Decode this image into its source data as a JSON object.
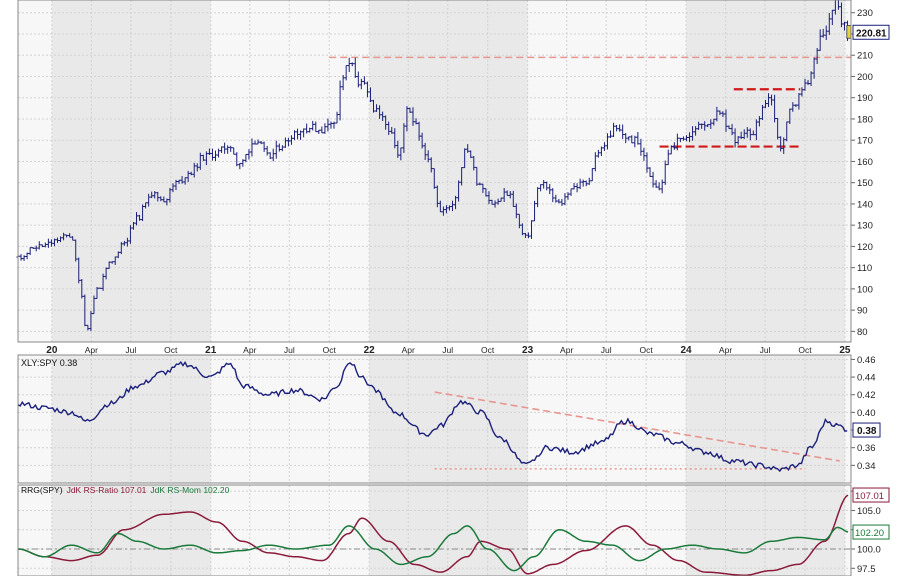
{
  "chart_data": [
    {
      "type": "ohlc",
      "panel": "price",
      "title": "",
      "series": [
        {
          "name": "",
          "color": "#1a1f7a"
        }
      ],
      "last_value_label": "220.81",
      "ylim": [
        75,
        236
      ],
      "y_ticks": [
        80,
        90,
        100,
        110,
        120,
        130,
        140,
        150,
        160,
        170,
        180,
        190,
        200,
        210,
        220,
        230
      ],
      "x_tick_labels": [
        {
          "label": "20",
          "date": "2020-01-01"
        },
        {
          "label": "Apr",
          "date": "2020-04-01"
        },
        {
          "label": "Jul",
          "date": "2020-07-01"
        },
        {
          "label": "Oct",
          "date": "2020-10-01"
        },
        {
          "label": "21",
          "date": "2021-01-01"
        },
        {
          "label": "Apr",
          "date": "2021-04-01"
        },
        {
          "label": "Jul",
          "date": "2021-07-01"
        },
        {
          "label": "Oct",
          "date": "2021-10-01"
        },
        {
          "label": "22",
          "date": "2022-01-01"
        },
        {
          "label": "Apr",
          "date": "2022-04-01"
        },
        {
          "label": "Jul",
          "date": "2022-07-01"
        },
        {
          "label": "Oct",
          "date": "2022-10-01"
        },
        {
          "label": "23",
          "date": "2023-01-01"
        },
        {
          "label": "Apr",
          "date": "2023-04-01"
        },
        {
          "label": "Jul",
          "date": "2023-07-01"
        },
        {
          "label": "Oct",
          "date": "2023-10-01"
        },
        {
          "label": "24",
          "date": "2024-01-01"
        },
        {
          "label": "Apr",
          "date": "2024-04-01"
        },
        {
          "label": "Jul",
          "date": "2024-07-01"
        },
        {
          "label": "Oct",
          "date": "2024-10-01"
        },
        {
          "label": "25",
          "date": "2025-01-01"
        }
      ],
      "x_range": [
        "2019-10-15",
        "2025-01-15"
      ],
      "grid": true,
      "close_points": [
        [
          "2019-10-15",
          115
        ],
        [
          "2019-12-01",
          120
        ],
        [
          "2020-02-15",
          125
        ],
        [
          "2020-03-05",
          103
        ],
        [
          "2020-03-20",
          81
        ],
        [
          "2020-04-15",
          100
        ],
        [
          "2020-05-15",
          112
        ],
        [
          "2020-06-15",
          122
        ],
        [
          "2020-07-15",
          133
        ],
        [
          "2020-08-15",
          145
        ],
        [
          "2020-09-15",
          142
        ],
        [
          "2020-10-15",
          150
        ],
        [
          "2020-11-15",
          155
        ],
        [
          "2020-12-15",
          162
        ],
        [
          "2021-01-15",
          164
        ],
        [
          "2021-02-15",
          168
        ],
        [
          "2021-03-05",
          158
        ],
        [
          "2021-04-15",
          170
        ],
        [
          "2021-05-15",
          162
        ],
        [
          "2021-06-15",
          168
        ],
        [
          "2021-07-15",
          174
        ],
        [
          "2021-08-15",
          176
        ],
        [
          "2021-09-15",
          175
        ],
        [
          "2021-10-15",
          180
        ],
        [
          "2021-11-01",
          200
        ],
        [
          "2021-11-15",
          206
        ],
        [
          "2021-12-15",
          196
        ],
        [
          "2022-01-15",
          185
        ],
        [
          "2022-02-15",
          175
        ],
        [
          "2022-03-10",
          162
        ],
        [
          "2022-03-31",
          184
        ],
        [
          "2022-05-15",
          163
        ],
        [
          "2022-06-15",
          136
        ],
        [
          "2022-07-10",
          140
        ],
        [
          "2022-08-15",
          166
        ],
        [
          "2022-09-10",
          150
        ],
        [
          "2022-10-15",
          140
        ],
        [
          "2022-11-15",
          145
        ],
        [
          "2022-12-28",
          124
        ],
        [
          "2023-02-01",
          150
        ],
        [
          "2023-03-15",
          140
        ],
        [
          "2023-04-15",
          148
        ],
        [
          "2023-05-15",
          150
        ],
        [
          "2023-06-15",
          165
        ],
        [
          "2023-07-20",
          175
        ],
        [
          "2023-09-01",
          170
        ],
        [
          "2023-10-30",
          148
        ],
        [
          "2023-11-30",
          168
        ],
        [
          "2024-01-01",
          172
        ],
        [
          "2024-02-15",
          178
        ],
        [
          "2024-03-15",
          182
        ],
        [
          "2024-04-30",
          170
        ],
        [
          "2024-05-31",
          174
        ],
        [
          "2024-07-10",
          190
        ],
        [
          "2024-08-05",
          167
        ],
        [
          "2024-09-01",
          185
        ],
        [
          "2024-10-01",
          195
        ],
        [
          "2024-11-15",
          222
        ],
        [
          "2024-12-10",
          236
        ],
        [
          "2024-12-31",
          224
        ],
        [
          "2025-01-10",
          221
        ]
      ],
      "annotations": [
        {
          "type": "horizontal-line",
          "y": 209,
          "from": "2021-10-01",
          "to": "2025-01-15",
          "style": "dashed",
          "color": "#e8958f"
        },
        {
          "type": "horizontal-line",
          "y": 167,
          "from": "2023-11-01",
          "to": "2024-09-20",
          "style": "dashed",
          "color": "#d01818"
        },
        {
          "type": "horizontal-line",
          "y": 194,
          "from": "2024-04-20",
          "to": "2024-09-20",
          "style": "dashed",
          "color": "#d01818"
        }
      ]
    },
    {
      "type": "line",
      "panel": "relative-strength",
      "legend": "XLY:SPY 0.38",
      "last_value_label": "0.38",
      "series": [
        {
          "name": "XLY:SPY",
          "color": "#1a1f7a"
        }
      ],
      "ylim": [
        0.32,
        0.465
      ],
      "y_ticks": [
        0.34,
        0.36,
        0.38,
        0.4,
        0.42,
        0.44,
        0.46
      ],
      "y_tick_labels": [
        "0.34",
        "0.36",
        "0.38",
        "0.40",
        "0.42",
        "0.44",
        "0.46"
      ],
      "points": [
        [
          "2019-10-15",
          0.41
        ],
        [
          "2019-12-15",
          0.405
        ],
        [
          "2020-02-15",
          0.4
        ],
        [
          "2020-03-20",
          0.39
        ],
        [
          "2020-05-15",
          0.41
        ],
        [
          "2020-07-15",
          0.43
        ],
        [
          "2020-09-15",
          0.445
        ],
        [
          "2020-11-01",
          0.455
        ],
        [
          "2021-01-01",
          0.44
        ],
        [
          "2021-02-15",
          0.455
        ],
        [
          "2021-03-15",
          0.43
        ],
        [
          "2021-05-15",
          0.42
        ],
        [
          "2021-07-15",
          0.425
        ],
        [
          "2021-09-15",
          0.415
        ],
        [
          "2021-10-20",
          0.43
        ],
        [
          "2021-11-15",
          0.458
        ],
        [
          "2021-12-15",
          0.44
        ],
        [
          "2022-01-15",
          0.425
        ],
        [
          "2022-03-01",
          0.4
        ],
        [
          "2022-05-15",
          0.375
        ],
        [
          "2022-06-15",
          0.385
        ],
        [
          "2022-08-01",
          0.412
        ],
        [
          "2022-09-15",
          0.4
        ],
        [
          "2022-11-01",
          0.37
        ],
        [
          "2022-12-28",
          0.34
        ],
        [
          "2023-02-15",
          0.36
        ],
        [
          "2023-04-15",
          0.355
        ],
        [
          "2023-06-15",
          0.365
        ],
        [
          "2023-08-15",
          0.39
        ],
        [
          "2023-10-15",
          0.375
        ],
        [
          "2023-12-15",
          0.365
        ],
        [
          "2024-02-15",
          0.355
        ],
        [
          "2024-04-15",
          0.345
        ],
        [
          "2024-06-15",
          0.34
        ],
        [
          "2024-08-05",
          0.335
        ],
        [
          "2024-09-15",
          0.34
        ],
        [
          "2024-10-15",
          0.36
        ],
        [
          "2024-11-20",
          0.39
        ],
        [
          "2024-12-15",
          0.385
        ],
        [
          "2025-01-10",
          0.38
        ]
      ],
      "annotations": [
        {
          "type": "trend-line",
          "from": [
            "2022-06-01",
            0.423
          ],
          "to": [
            "2024-12-20",
            0.345
          ],
          "style": "dashed",
          "color": "#e8958f"
        },
        {
          "type": "horizontal-line",
          "y": 0.336,
          "from": "2022-06-01",
          "to": "2024-10-01",
          "style": "dotted",
          "color": "#e8958f"
        }
      ],
      "grid": true
    },
    {
      "type": "line",
      "panel": "rrg",
      "legend_prefix": "RRG(SPY)",
      "legend_items": [
        {
          "text": "JdK RS-Ratio 107.01",
          "color": "#8b1a3a"
        },
        {
          "text": "JdK RS-Mom 102.20",
          "color": "#1a7a3a"
        }
      ],
      "last_value_labels": [
        "107.01",
        "102.20"
      ],
      "ylim": [
        96.5,
        108.3
      ],
      "y_ticks": [
        97.5,
        100.0,
        102.5,
        105.0,
        107.5
      ],
      "y_tick_labels": [
        "97.5",
        "100.0",
        "102.5",
        "105.0",
        "107.5"
      ],
      "reference_line": 100.0,
      "series": [
        {
          "name": "JdK RS-Ratio",
          "color": "#8b1a3a",
          "points": [
            [
              "2019-10-15",
              100.0
            ],
            [
              "2019-12-15",
              99.0
            ],
            [
              "2020-02-15",
              98.5
            ],
            [
              "2020-04-15",
              99.2
            ],
            [
              "2020-06-15",
              102.5
            ],
            [
              "2020-09-15",
              104.5
            ],
            [
              "2020-11-15",
              104.8
            ],
            [
              "2021-01-15",
              103.5
            ],
            [
              "2021-03-15",
              101.0
            ],
            [
              "2021-05-15",
              99.5
            ],
            [
              "2021-07-15",
              99.0
            ],
            [
              "2021-09-15",
              98.5
            ],
            [
              "2021-11-15",
              102.0
            ],
            [
              "2021-12-15",
              104.0
            ],
            [
              "2022-02-15",
              101.0
            ],
            [
              "2022-04-15",
              98.0
            ],
            [
              "2022-06-15",
              97.0
            ],
            [
              "2022-08-15",
              99.0
            ],
            [
              "2022-09-15",
              101.0
            ],
            [
              "2022-11-15",
              100.0
            ],
            [
              "2023-01-01",
              96.8
            ],
            [
              "2023-03-01",
              98.0
            ],
            [
              "2023-05-15",
              99.8
            ],
            [
              "2023-08-15",
              103.0
            ],
            [
              "2023-10-15",
              100.5
            ],
            [
              "2023-12-15",
              98.5
            ],
            [
              "2024-02-15",
              97.0
            ],
            [
              "2024-05-15",
              96.6
            ],
            [
              "2024-07-15",
              97.2
            ],
            [
              "2024-09-15",
              98.0
            ],
            [
              "2024-11-15",
              101.0
            ],
            [
              "2025-01-10",
              107.0
            ]
          ]
        },
        {
          "name": "JdK RS-Mom",
          "color": "#1a7a3a",
          "points": [
            [
              "2019-10-15",
              100.0
            ],
            [
              "2019-12-15",
              99.0
            ],
            [
              "2020-02-15",
              100.5
            ],
            [
              "2020-04-15",
              99.5
            ],
            [
              "2020-06-01",
              102.0
            ],
            [
              "2020-07-15",
              101.0
            ],
            [
              "2020-09-15",
              100.0
            ],
            [
              "2020-11-15",
              100.5
            ],
            [
              "2021-01-15",
              99.5
            ],
            [
              "2021-03-15",
              99.8
            ],
            [
              "2021-05-15",
              100.5
            ],
            [
              "2021-07-15",
              100.0
            ],
            [
              "2021-10-01",
              100.5
            ],
            [
              "2021-11-15",
              103.0
            ],
            [
              "2022-01-15",
              100.0
            ],
            [
              "2022-03-15",
              98.0
            ],
            [
              "2022-05-15",
              99.0
            ],
            [
              "2022-07-15",
              102.0
            ],
            [
              "2022-08-15",
              103.0
            ],
            [
              "2022-10-01",
              100.0
            ],
            [
              "2022-12-01",
              97.2
            ],
            [
              "2023-01-15",
              99.0
            ],
            [
              "2023-03-15",
              102.5
            ],
            [
              "2023-05-15",
              101.0
            ],
            [
              "2023-07-15",
              100.5
            ],
            [
              "2023-09-15",
              98.5
            ],
            [
              "2023-11-15",
              100.0
            ],
            [
              "2024-01-15",
              100.5
            ],
            [
              "2024-03-15",
              100.0
            ],
            [
              "2024-05-15",
              99.5
            ],
            [
              "2024-07-15",
              101.0
            ],
            [
              "2024-09-15",
              101.5
            ],
            [
              "2024-11-15",
              101.2
            ],
            [
              "2024-12-15",
              102.8
            ],
            [
              "2025-01-10",
              102.2
            ]
          ]
        }
      ],
      "grid": true
    }
  ]
}
